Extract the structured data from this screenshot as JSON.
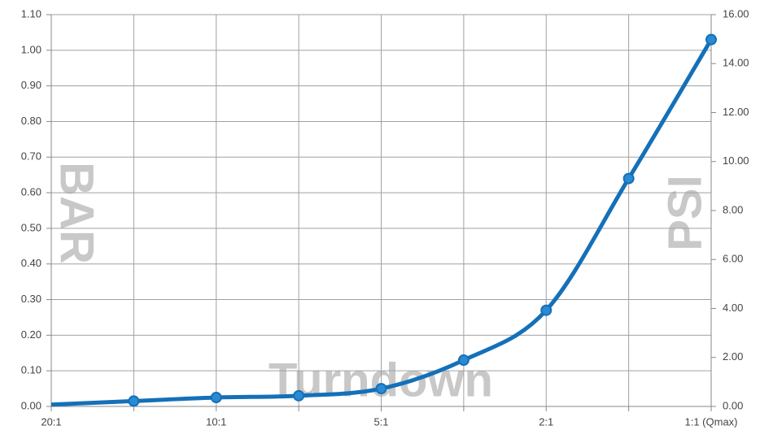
{
  "chart_data": {
    "type": "line",
    "categories": [
      "20:1",
      null,
      "10:1",
      null,
      "5:1",
      null,
      "2:1",
      null,
      "1:1 (Qmax)"
    ],
    "series": [
      {
        "name": "BAR",
        "color": "#1470b8",
        "values": [
          0.005,
          0.015,
          0.025,
          0.03,
          0.05,
          0.13,
          0.27,
          0.64,
          1.03
        ]
      }
    ],
    "ylim": [
      0,
      1.1
    ],
    "yticks": [
      {
        "value": 0,
        "label": "0.00"
      },
      {
        "value": 0.1,
        "label": "0.10"
      },
      {
        "value": 0.2,
        "label": "0.20"
      },
      {
        "value": 0.3,
        "label": "0.30"
      },
      {
        "value": 0.4,
        "label": "0.40"
      },
      {
        "value": 0.5,
        "label": "0.50"
      },
      {
        "value": 0.6,
        "label": "0.60"
      },
      {
        "value": 0.7,
        "label": "0.70"
      },
      {
        "value": 0.8,
        "label": "0.80"
      },
      {
        "value": 0.9,
        "label": "0.90"
      },
      {
        "value": 1.0,
        "label": "1.00"
      },
      {
        "value": 1.1,
        "label": "1.10"
      }
    ],
    "y2lim": [
      0,
      16
    ],
    "y2ticks": [
      {
        "value": 0,
        "label": "0.00"
      },
      {
        "value": 2,
        "label": "2.00"
      },
      {
        "value": 4,
        "label": "4.00"
      },
      {
        "value": 6,
        "label": "6.00"
      },
      {
        "value": 8,
        "label": "8.00"
      },
      {
        "value": 10,
        "label": "10.00"
      },
      {
        "value": 12,
        "label": "12.00"
      },
      {
        "value": 14,
        "label": "14.00"
      },
      {
        "value": 16,
        "label": "16.00"
      }
    ],
    "ylabel": "BAR",
    "y2label": "PSI",
    "xlabel": "Turndown",
    "grid": true
  }
}
